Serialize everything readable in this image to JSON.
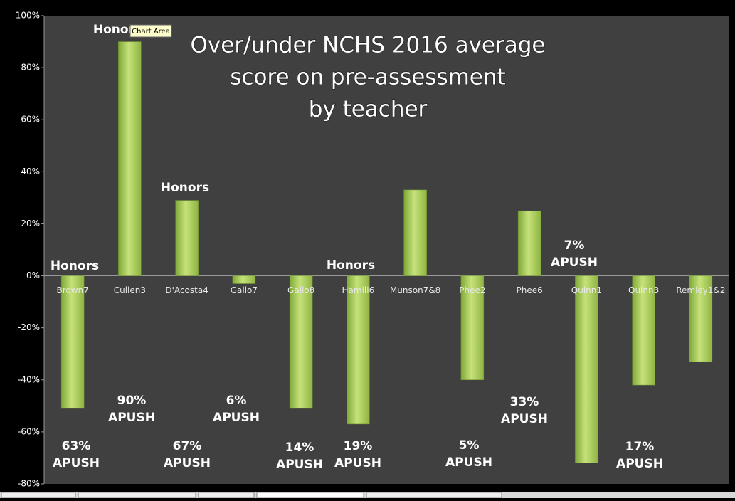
{
  "chart_data": {
    "type": "bar",
    "title": [
      "Over/under NCHS 2016 average",
      "score on pre-assessment",
      "by teacher"
    ],
    "categories": [
      "Brown7",
      "Cullen3",
      "D'Acosta4",
      "Gallo7",
      "Gallo8",
      "Hamill6",
      "Munson7&8",
      "Phee2",
      "Phee6",
      "Quinn1",
      "Quinn3",
      "Remley1&2"
    ],
    "values": [
      -51,
      90,
      29,
      -3,
      -51,
      -57,
      33,
      -40,
      25,
      -72,
      -42,
      -33
    ],
    "color": "#a8cc55",
    "ylim": [
      -80,
      100
    ],
    "yticks": [
      {
        "value": -80,
        "label": "-80%"
      },
      {
        "value": -60,
        "label": "-60%"
      },
      {
        "value": -40,
        "label": "-40%"
      },
      {
        "value": -20,
        "label": "-20%"
      },
      {
        "value": 0,
        "label": "0%"
      },
      {
        "value": 20,
        "label": "20%"
      },
      {
        "value": 40,
        "label": "40%"
      },
      {
        "value": 60,
        "label": "60%"
      },
      {
        "value": 80,
        "label": "80%"
      },
      {
        "value": 100,
        "label": "100%"
      }
    ],
    "grid": false,
    "annotations": [
      [
        "Honors"
      ],
      [
        "Honors"
      ],
      [
        "Honors"
      ],
      [
        "Honors"
      ],
      [
        "7%",
        "APUSH"
      ],
      [
        "63%",
        "APUSH"
      ],
      [
        "90%",
        "APUSH"
      ],
      [
        "6%",
        "APUSH"
      ],
      [
        "67%",
        "APUSH"
      ],
      [
        "14%",
        "APUSH"
      ],
      [
        "19%",
        "APUSH"
      ],
      [
        "5%",
        "APUSH"
      ],
      [
        "33%",
        "APUSH"
      ],
      [
        "17%",
        "APUSH"
      ]
    ],
    "tooltip": "Chart Area"
  }
}
